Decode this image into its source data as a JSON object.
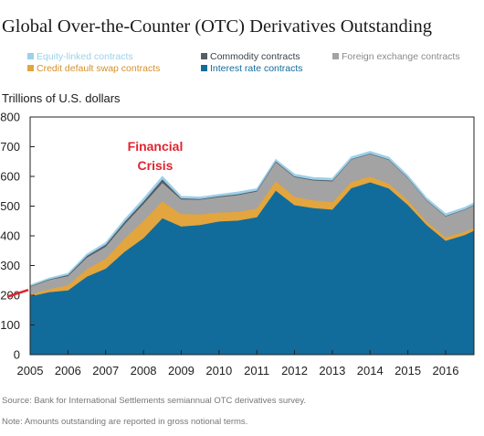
{
  "title": "Global Over-the-Counter (OTC) Derivatives Outstanding",
  "ylabel": "Trillions of U.S. dollars",
  "source": "Source: Bank for International Settlements semiannual OTC derivatives survey.",
  "note": "Note: Amounts outstanding are reported in gross notional terms.",
  "annotation": {
    "line1": "Financial",
    "line2": "Crisis",
    "color": "#e0242f"
  },
  "chart_data": {
    "type": "area",
    "stacked": true,
    "xlim": [
      2005,
      2016.75
    ],
    "ylim": [
      0,
      800
    ],
    "x_ticks": [
      2005,
      2006,
      2007,
      2008,
      2009,
      2010,
      2011,
      2012,
      2013,
      2014,
      2015,
      2016
    ],
    "y_ticks": [
      0,
      100,
      200,
      300,
      400,
      500,
      600,
      700,
      800
    ],
    "grid": false,
    "legend_position": "top",
    "x": [
      2005,
      2005.5,
      2006,
      2006.5,
      2007,
      2007.5,
      2008,
      2008.5,
      2009,
      2009.5,
      2010,
      2010.5,
      2011,
      2011.5,
      2012,
      2012.5,
      2013,
      2013.5,
      2014,
      2014.5,
      2015,
      2015.5,
      2016,
      2016.5,
      2016.75
    ],
    "series": [
      {
        "name": "Interest rate contracts",
        "color": "#116c9c",
        "values": [
          197,
          211,
          217,
          263,
          290,
          347,
          393,
          460,
          432,
          437,
          449,
          452,
          463,
          553,
          504,
          494,
          489,
          561,
          581,
          560,
          505,
          437,
          384,
          403,
          418
        ]
      },
      {
        "name": "Credit default swap contracts",
        "color": "#e3a53d",
        "values": [
          6,
          10,
          17,
          25,
          34,
          45,
          58,
          57,
          42,
          36,
          30,
          29,
          30,
          32,
          28,
          26,
          25,
          21,
          19,
          16,
          15,
          12,
          12,
          11,
          10
        ]
      },
      {
        "name": "Foreign exchange contracts",
        "color": "#a3a3a3",
        "values": [
          26,
          31,
          31,
          39,
          40,
          48,
          57,
          62,
          49,
          49,
          52,
          57,
          57,
          64,
          66,
          67,
          70,
          75,
          76,
          80,
          75,
          70,
          70,
          74,
          75
        ]
      },
      {
        "name": "Commodity contracts",
        "color": "#555e66",
        "values": [
          2,
          2,
          4,
          6,
          7,
          8,
          9,
          12,
          4,
          3,
          3,
          3,
          3,
          3,
          3,
          3,
          3,
          2,
          2,
          2,
          2,
          2,
          2,
          2,
          2
        ]
      },
      {
        "name": "Equity-linked contracts",
        "color": "#9dd0ea",
        "values": [
          4,
          4,
          5,
          6,
          7,
          8,
          9,
          10,
          7,
          6,
          6,
          7,
          6,
          6,
          7,
          7,
          7,
          7,
          7,
          7,
          7,
          7,
          7,
          6,
          6
        ]
      }
    ],
    "legend_entries": [
      {
        "label": "Equity-linked contracts",
        "color": "#9dd0ea"
      },
      {
        "label": "Commodity contracts",
        "color": "#555e66"
      },
      {
        "label": "Foreign exchange contracts",
        "color": "#a3a3a3"
      },
      {
        "label": "Credit default swap contracts",
        "color": "#e3a53d"
      },
      {
        "label": "Interest rate contracts",
        "color": "#116c9c"
      }
    ]
  }
}
